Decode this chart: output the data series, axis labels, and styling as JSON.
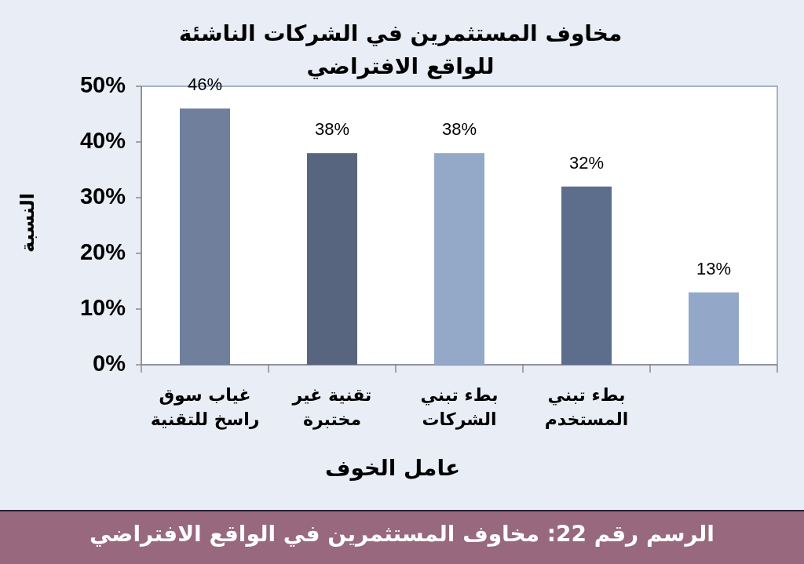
{
  "chart_data": {
    "type": "bar",
    "title": "مخاوف المستثمرين في الشركات الناشئة للواقع الافتراضي",
    "xlabel": "عامل الخوف",
    "ylabel": "النسبة",
    "categories": [
      "غياب سوق راسخ للتقنية",
      "تقنية غير مختبرة",
      "بطء تبني الشركات",
      "بطء تبني المستخدم",
      null
    ],
    "values": [
      46,
      38,
      38,
      32,
      13
    ],
    "colors": [
      "#6f7f9c",
      "#58657e",
      "#94a8c8",
      "#5d6e8c",
      "#93a7c9"
    ],
    "value_labels": [
      "46%",
      "38%",
      "38%",
      "32%",
      "13%"
    ],
    "ylim": [
      0,
      50
    ],
    "yticks": [
      {
        "value": 0,
        "label": "0%"
      },
      {
        "value": 10,
        "label": "10%"
      },
      {
        "value": 20,
        "label": "20%"
      },
      {
        "value": 30,
        "label": "30%"
      },
      {
        "value": 40,
        "label": "40%"
      },
      {
        "value": 50,
        "label": "50%"
      }
    ],
    "annotations": [
      "الرسم رقم 22: مخاوف المستثمرين في الواقع الافتراضي"
    ]
  }
}
